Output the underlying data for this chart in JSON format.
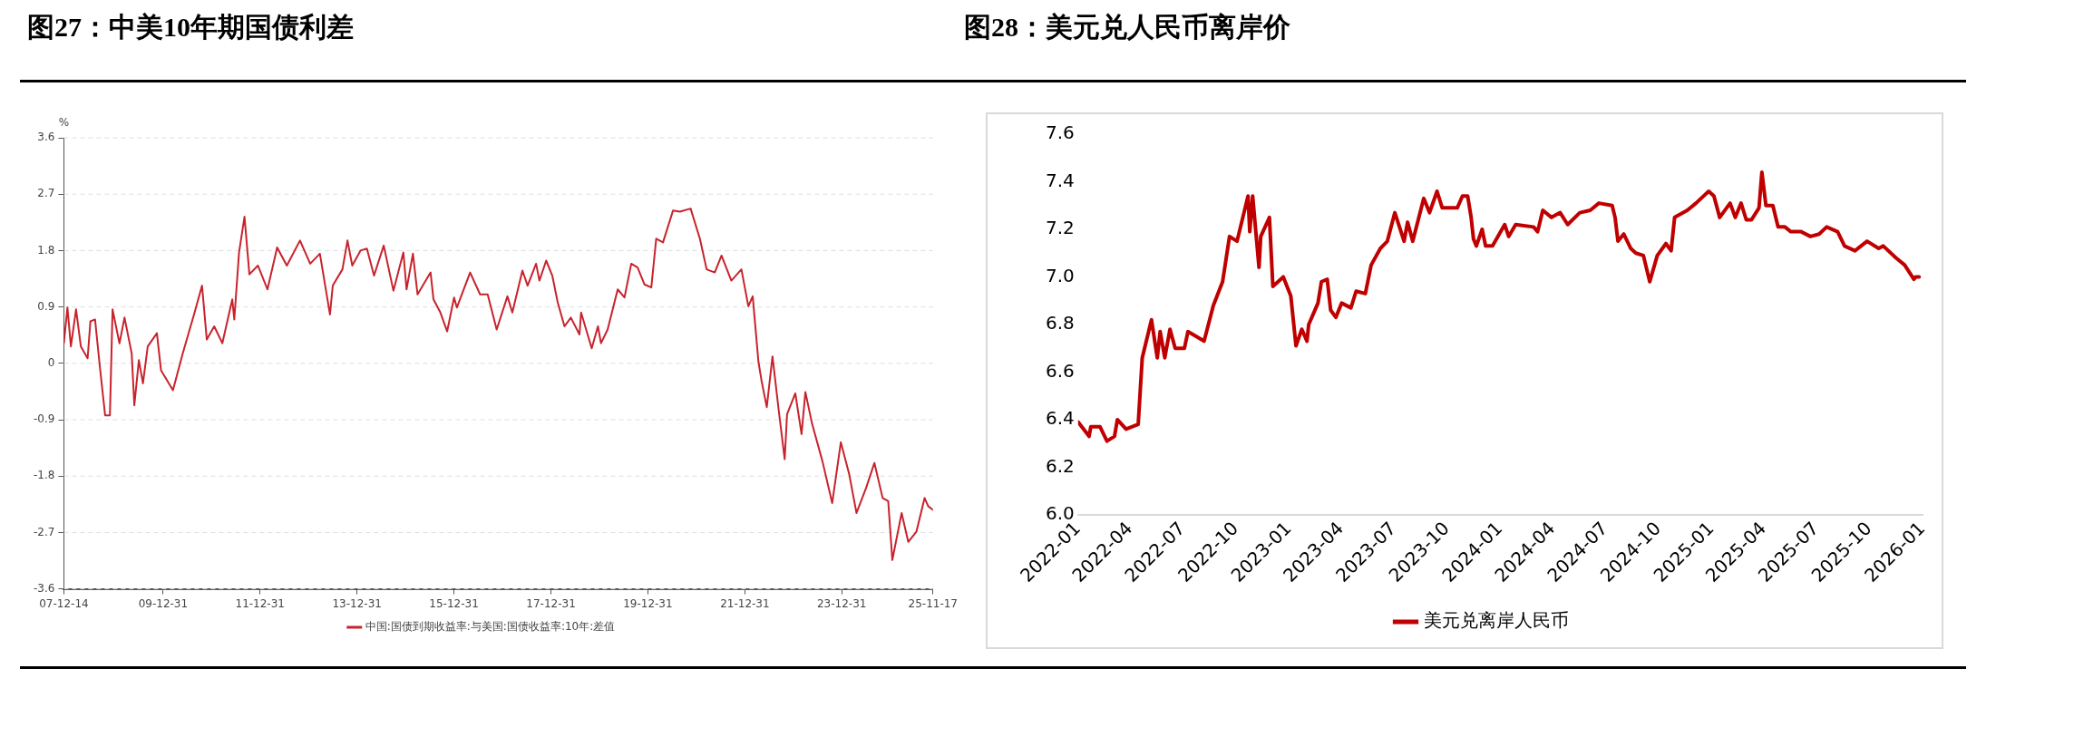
{
  "chart_data": [
    {
      "type": "line",
      "title": "图27：中美10年期国债利差",
      "ylabel": "%",
      "legend": "bottom",
      "grid": "y",
      "xlim": [
        "2007-12-14",
        "2025-11-17"
      ],
      "xticks": [
        {
          "value": "2007-12-14",
          "label": "07-12-14"
        },
        {
          "value": "2009-12-31",
          "label": "09-12-31"
        },
        {
          "value": "2011-12-31",
          "label": "11-12-31"
        },
        {
          "value": "2013-12-31",
          "label": "13-12-31"
        },
        {
          "value": "2015-12-31",
          "label": "15-12-31"
        },
        {
          "value": "2017-12-31",
          "label": "17-12-31"
        },
        {
          "value": "2019-12-31",
          "label": "19-12-31"
        },
        {
          "value": "2021-12-31",
          "label": "21-12-31"
        },
        {
          "value": "2023-12-31",
          "label": "23-12-31"
        },
        {
          "value": "2025-11-17",
          "label": "25-11-17"
        }
      ],
      "ylim": [
        -3.6,
        3.6
      ],
      "yticks": [
        -3.6,
        -2.7,
        -1.8,
        -0.9,
        0,
        0.9,
        1.8,
        2.7,
        3.6
      ],
      "x": [
        "2007-12-14",
        "2008-01-10",
        "2008-02-05",
        "2008-03-15",
        "2008-04-20",
        "2008-06-10",
        "2008-07-01",
        "2008-08-05",
        "2008-09-10",
        "2008-10-20",
        "2008-11-25",
        "2008-12-15",
        "2009-02-05",
        "2009-03-15",
        "2009-05-08",
        "2009-05-28",
        "2009-07-01",
        "2009-08-01",
        "2009-09-06",
        "2009-11-14",
        "2009-12-15",
        "2010-03-15",
        "2010-05-28",
        "2010-08-25",
        "2010-10-20",
        "2010-11-25",
        "2011-01-20",
        "2011-03-22",
        "2011-06-05",
        "2011-06-20",
        "2011-07-26",
        "2011-09-05",
        "2011-10-12",
        "2011-12-15",
        "2012-02-25",
        "2012-05-08",
        "2012-07-20",
        "2012-10-27",
        "2013-01-12",
        "2013-03-26",
        "2013-06-10",
        "2013-07-01",
        "2013-09-12",
        "2013-10-20",
        "2013-11-25",
        "2014-01-26",
        "2014-03-15",
        "2014-05-08",
        "2014-07-20",
        "2014-10-01",
        "2014-12-15",
        "2015-01-08",
        "2015-02-25",
        "2015-04-01",
        "2015-07-08",
        "2015-07-30",
        "2015-09-20",
        "2015-11-10",
        "2016-01-01",
        "2016-01-22",
        "2016-05-01",
        "2016-07-15",
        "2016-09-10",
        "2016-11-17",
        "2017-02-06",
        "2017-03-15",
        "2017-05-30",
        "2017-07-08",
        "2017-09-10",
        "2017-10-05",
        "2017-11-25",
        "2018-01-10",
        "2018-02-20",
        "2018-04-12",
        "2018-05-30",
        "2018-08-03",
        "2018-08-15",
        "2018-11-03",
        "2018-12-20",
        "2019-01-12",
        "2019-03-03",
        "2019-05-18",
        "2019-07-08",
        "2019-08-28",
        "2019-10-15",
        "2019-12-05",
        "2020-01-26",
        "2020-03-03",
        "2020-04-23",
        "2020-07-08",
        "2020-08-28",
        "2020-11-17",
        "2021-01-26",
        "2021-03-18",
        "2021-05-18",
        "2021-07-08",
        "2021-09-20",
        "2021-12-05",
        "2022-01-26",
        "2022-02-28",
        "2022-04-12",
        "2022-05-05",
        "2022-06-14",
        "2022-07-27",
        "2022-09-12",
        "2022-10-27",
        "2022-11-14",
        "2023-01-15",
        "2023-03-03",
        "2023-04-01",
        "2023-05-22",
        "2023-08-07",
        "2023-10-20",
        "2023-12-24",
        "2024-02-25",
        "2024-04-20",
        "2024-07-01",
        "2024-09-02",
        "2024-11-03",
        "2024-12-15",
        "2025-01-15",
        "2025-03-26",
        "2025-05-15",
        "2025-07-15",
        "2025-09-15",
        "2025-10-12",
        "2025-11-17"
      ],
      "series": [
        {
          "name": "中国:国债到期收益率:与美国:国债收益率:10年:差值",
          "color": "#c8232c",
          "values": [
            0.32,
            0.89,
            0.27,
            0.86,
            0.27,
            0.08,
            0.67,
            0.7,
            -0.05,
            -0.83,
            -0.83,
            0.86,
            0.32,
            0.73,
            0.16,
            -0.67,
            0.05,
            -0.32,
            0.27,
            0.48,
            -0.11,
            -0.43,
            0.16,
            0.81,
            1.24,
            0.38,
            0.59,
            0.32,
            1.02,
            0.7,
            1.77,
            2.34,
            1.42,
            1.56,
            1.18,
            1.85,
            1.56,
            1.96,
            1.59,
            1.75,
            0.78,
            1.24,
            1.5,
            1.96,
            1.56,
            1.8,
            1.83,
            1.4,
            1.88,
            1.16,
            1.77,
            1.18,
            1.75,
            1.1,
            1.45,
            1.02,
            0.81,
            0.51,
            1.05,
            0.89,
            1.45,
            1.1,
            1.1,
            0.54,
            1.07,
            0.81,
            1.48,
            1.24,
            1.59,
            1.32,
            1.64,
            1.4,
            0.97,
            0.59,
            0.73,
            0.46,
            0.81,
            0.24,
            0.59,
            0.32,
            0.54,
            1.18,
            1.05,
            1.59,
            1.53,
            1.26,
            1.21,
            1.99,
            1.93,
            2.44,
            2.42,
            2.47,
            1.99,
            1.5,
            1.45,
            1.72,
            1.32,
            1.5,
            0.91,
            1.07,
            0.03,
            -0.27,
            -0.7,
            0.11,
            -0.75,
            -1.53,
            -0.81,
            -0.48,
            -1.13,
            -0.46,
            -0.97,
            -1.56,
            -2.23,
            -1.26,
            -1.77,
            -2.39,
            -1.99,
            -1.59,
            -2.15,
            -2.2,
            -3.14,
            -2.39,
            -2.85,
            -2.69,
            -2.15,
            -2.28,
            -2.34
          ]
        }
      ]
    },
    {
      "type": "line",
      "title": "图28：美元兑人民币离岸价",
      "legend": "bottom",
      "xlim": [
        "2022-01",
        "2026-01"
      ],
      "xticks": [
        "2022-01",
        "2022-04",
        "2022-07",
        "2022-10",
        "2023-01",
        "2023-04",
        "2023-07",
        "2023-10",
        "2024-01",
        "2024-04",
        "2024-07",
        "2024-10",
        "2025-01",
        "2025-04",
        "2025-07",
        "2025-10",
        "2026-01"
      ],
      "ylim": [
        6.0,
        7.6
      ],
      "yticks": [
        {
          "value": 6,
          "label": "6.0"
        },
        {
          "value": 6.2,
          "label": "6.2"
        },
        {
          "value": 6.4,
          "label": "6.4"
        },
        {
          "value": 6.6,
          "label": "6.6"
        },
        {
          "value": 6.8,
          "label": "6.8"
        },
        {
          "value": 7,
          "label": "7.0"
        },
        {
          "value": 7.2,
          "label": "7.2"
        },
        {
          "value": 7.4,
          "label": "7.4"
        },
        {
          "value": 7.6,
          "label": "7.6"
        }
      ],
      "x": [
        "2022-01-01",
        "2022-01-20",
        "2022-01-23",
        "2022-02-08",
        "2022-02-20",
        "2022-03-05",
        "2022-03-10",
        "2022-03-25",
        "2022-04-15",
        "2022-04-22",
        "2022-05-08",
        "2022-05-18",
        "2022-05-23",
        "2022-05-31",
        "2022-06-09",
        "2022-06-18",
        "2022-07-04",
        "2022-07-10",
        "2022-08-07",
        "2022-08-23",
        "2022-09-08",
        "2022-09-20",
        "2022-10-03",
        "2022-10-15",
        "2022-10-22",
        "2022-10-25",
        "2022-10-30",
        "2022-11-10",
        "2022-11-13",
        "2022-11-28",
        "2022-12-04",
        "2022-12-22",
        "2023-01-04",
        "2023-01-13",
        "2023-01-23",
        "2023-02-01",
        "2023-02-04",
        "2023-02-20",
        "2023-02-26",
        "2023-03-08",
        "2023-03-14",
        "2023-03-23",
        "2023-04-02",
        "2023-04-18",
        "2023-04-27",
        "2023-05-13",
        "2023-05-23",
        "2023-06-08",
        "2023-06-20",
        "2023-07-03",
        "2023-07-19",
        "2023-07-25",
        "2023-08-03",
        "2023-08-22",
        "2023-09-01",
        "2023-09-14",
        "2023-09-23",
        "2023-10-19",
        "2023-10-28",
        "2023-11-06",
        "2023-11-12",
        "2023-11-16",
        "2023-11-21",
        "2023-12-01",
        "2023-12-07",
        "2023-12-19",
        "2024-01-09",
        "2024-01-16",
        "2024-01-28",
        "2024-02-28",
        "2024-03-06",
        "2024-03-15",
        "2024-03-30",
        "2024-04-14",
        "2024-04-27",
        "2024-05-18",
        "2024-06-05",
        "2024-06-20",
        "2024-07-13",
        "2024-07-18",
        "2024-07-23",
        "2024-08-02",
        "2024-08-14",
        "2024-08-23",
        "2024-09-05",
        "2024-09-16",
        "2024-09-29",
        "2024-10-14",
        "2024-10-23",
        "2024-10-29",
        "2024-11-20",
        "2024-12-05",
        "2024-12-27",
        "2025-01-05",
        "2025-01-15",
        "2025-02-02",
        "2025-02-11",
        "2025-02-21",
        "2025-03-02",
        "2025-03-11",
        "2025-03-24",
        "2025-03-29",
        "2025-04-05",
        "2025-04-17",
        "2025-04-26",
        "2025-05-08",
        "2025-05-18",
        "2025-06-05",
        "2025-06-21",
        "2025-07-06",
        "2025-07-19",
        "2025-08-07",
        "2025-08-19",
        "2025-09-06",
        "2025-09-27",
        "2025-10-17",
        "2025-10-25",
        "2025-11-16",
        "2025-12-01",
        "2025-12-17",
        "2025-12-20",
        "2025-12-26"
      ],
      "series": [
        {
          "name": "美元兑离岸人民币",
          "color": "#c00000",
          "values": [
            6.39,
            6.33,
            6.37,
            6.37,
            6.31,
            6.33,
            6.4,
            6.36,
            6.38,
            6.66,
            6.82,
            6.66,
            6.77,
            6.66,
            6.78,
            6.7,
            6.7,
            6.77,
            6.73,
            6.88,
            6.98,
            7.17,
            7.15,
            7.27,
            7.34,
            7.19,
            7.34,
            7.04,
            7.17,
            7.25,
            6.96,
            7.0,
            6.92,
            6.71,
            6.78,
            6.73,
            6.8,
            6.89,
            6.98,
            6.99,
            6.86,
            6.83,
            6.89,
            6.87,
            6.94,
            6.93,
            7.05,
            7.12,
            7.15,
            7.27,
            7.15,
            7.23,
            7.15,
            7.33,
            7.27,
            7.36,
            7.29,
            7.29,
            7.34,
            7.34,
            7.25,
            7.16,
            7.13,
            7.2,
            7.13,
            7.13,
            7.22,
            7.17,
            7.22,
            7.21,
            7.19,
            7.28,
            7.25,
            7.27,
            7.22,
            7.27,
            7.28,
            7.31,
            7.3,
            7.25,
            7.15,
            7.18,
            7.12,
            7.1,
            7.09,
            6.98,
            7.09,
            7.14,
            7.11,
            7.25,
            7.28,
            7.31,
            7.36,
            7.34,
            7.25,
            7.31,
            7.25,
            7.31,
            7.24,
            7.24,
            7.29,
            7.44,
            7.3,
            7.3,
            7.21,
            7.21,
            7.19,
            7.19,
            7.17,
            7.18,
            7.21,
            7.19,
            7.13,
            7.11,
            7.15,
            7.12,
            7.13,
            7.08,
            7.05,
            6.99,
            7.0,
            7.0
          ]
        }
      ]
    }
  ]
}
